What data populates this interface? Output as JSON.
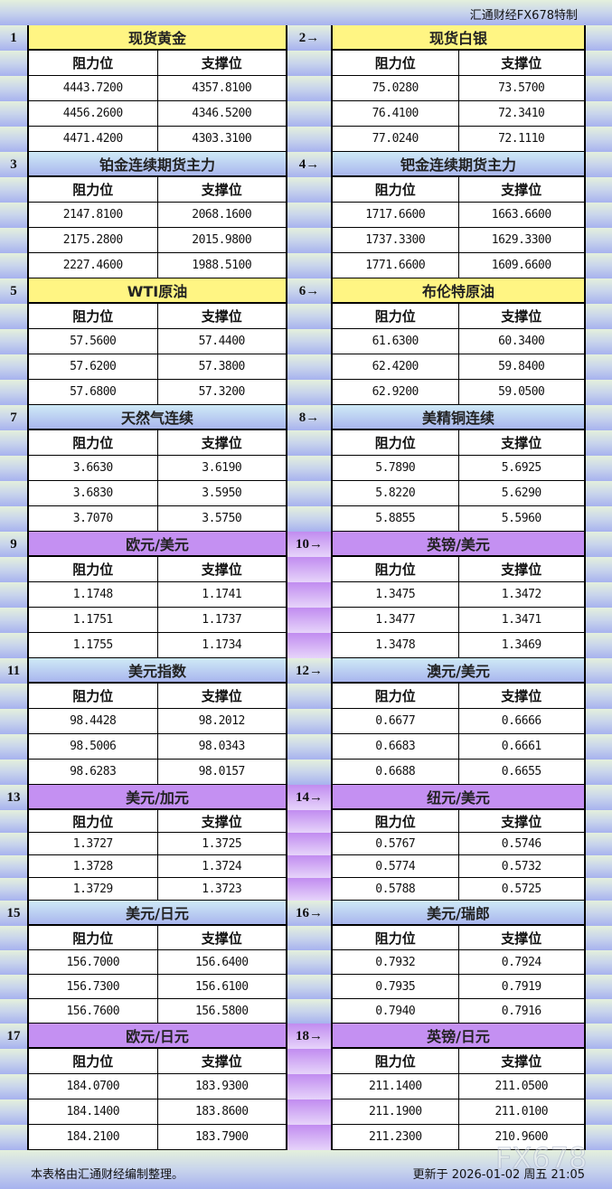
{
  "top_label": "汇通财经FX678特制",
  "col_headers": {
    "resistance": "阻力位",
    "support": "支撑位"
  },
  "arrow": "→",
  "colors": {
    "yellow": "#fff583",
    "blue": "#a9b6ee",
    "purple": "#c490f2"
  },
  "blocks": [
    {
      "num": "1",
      "title": "现货黄金",
      "rows": [
        [
          "4443.7200",
          "4357.8100"
        ],
        [
          "4456.2600",
          "4346.5200"
        ],
        [
          "4471.4200",
          "4303.3100"
        ]
      ]
    },
    {
      "num": "2",
      "title": "现货白银",
      "rows": [
        [
          "75.0280",
          "73.5700"
        ],
        [
          "76.4100",
          "72.3410"
        ],
        [
          "77.0240",
          "72.1110"
        ]
      ]
    },
    {
      "num": "3",
      "title": "铂金连续期货主力",
      "rows": [
        [
          "2147.8100",
          "2068.1600"
        ],
        [
          "2175.2800",
          "2015.9800"
        ],
        [
          "2227.4600",
          "1988.5100"
        ]
      ]
    },
    {
      "num": "4",
      "title": "钯金连续期货主力",
      "rows": [
        [
          "1717.6600",
          "1663.6600"
        ],
        [
          "1737.3300",
          "1629.3300"
        ],
        [
          "1771.6600",
          "1609.6600"
        ]
      ]
    },
    {
      "num": "5",
      "title": "WTI原油",
      "rows": [
        [
          "57.5600",
          "57.4400"
        ],
        [
          "57.6200",
          "57.3800"
        ],
        [
          "57.6800",
          "57.3200"
        ]
      ]
    },
    {
      "num": "6",
      "title": "布伦特原油",
      "rows": [
        [
          "61.6300",
          "60.3400"
        ],
        [
          "62.4200",
          "59.8400"
        ],
        [
          "62.9200",
          "59.0500"
        ]
      ]
    },
    {
      "num": "7",
      "title": "天然气连续",
      "rows": [
        [
          "3.6630",
          "3.6190"
        ],
        [
          "3.6830",
          "3.5950"
        ],
        [
          "3.7070",
          "3.5750"
        ]
      ]
    },
    {
      "num": "8",
      "title": "美精铜连续",
      "rows": [
        [
          "5.7890",
          "5.6925"
        ],
        [
          "5.8220",
          "5.6290"
        ],
        [
          "5.8855",
          "5.5960"
        ]
      ]
    },
    {
      "num": "9",
      "title": "欧元/美元",
      "rows": [
        [
          "1.1748",
          "1.1741"
        ],
        [
          "1.1751",
          "1.1737"
        ],
        [
          "1.1755",
          "1.1734"
        ]
      ]
    },
    {
      "num": "10",
      "title": "英镑/美元",
      "rows": [
        [
          "1.3475",
          "1.3472"
        ],
        [
          "1.3477",
          "1.3471"
        ],
        [
          "1.3478",
          "1.3469"
        ]
      ]
    },
    {
      "num": "11",
      "title": "美元指数",
      "rows": [
        [
          "98.4428",
          "98.2012"
        ],
        [
          "98.5006",
          "98.0343"
        ],
        [
          "98.6283",
          "98.0157"
        ]
      ]
    },
    {
      "num": "12",
      "title": "澳元/美元",
      "rows": [
        [
          "0.6677",
          "0.6666"
        ],
        [
          "0.6683",
          "0.6661"
        ],
        [
          "0.6688",
          "0.6655"
        ]
      ]
    },
    {
      "num": "13",
      "title": "美元/加元",
      "rows": [
        [
          "1.3727",
          "1.3725"
        ],
        [
          "1.3728",
          "1.3724"
        ],
        [
          "1.3729",
          "1.3723"
        ]
      ]
    },
    {
      "num": "14",
      "title": "纽元/美元",
      "rows": [
        [
          "0.5767",
          "0.5746"
        ],
        [
          "0.5774",
          "0.5732"
        ],
        [
          "0.5788",
          "0.5725"
        ]
      ]
    },
    {
      "num": "15",
      "title": "美元/日元",
      "rows": [
        [
          "156.7000",
          "156.6400"
        ],
        [
          "156.7300",
          "156.6100"
        ],
        [
          "156.7600",
          "156.5800"
        ]
      ]
    },
    {
      "num": "16",
      "title": "美元/瑞郎",
      "rows": [
        [
          "0.7932",
          "0.7924"
        ],
        [
          "0.7935",
          "0.7919"
        ],
        [
          "0.7940",
          "0.7916"
        ]
      ]
    },
    {
      "num": "17",
      "title": "欧元/日元",
      "rows": [
        [
          "184.0700",
          "183.9300"
        ],
        [
          "184.1400",
          "183.8600"
        ],
        [
          "184.2100",
          "183.7900"
        ]
      ]
    },
    {
      "num": "18",
      "title": "英镑/日元",
      "rows": [
        [
          "211.1400",
          "211.0500"
        ],
        [
          "211.1900",
          "211.0100"
        ],
        [
          "211.2300",
          "210.9600"
        ]
      ]
    }
  ],
  "footer": {
    "note": "本表格由汇通财经编制整理。",
    "updated": "更新于 2026-01-02 周五 21:05"
  },
  "watermark": "FX678"
}
